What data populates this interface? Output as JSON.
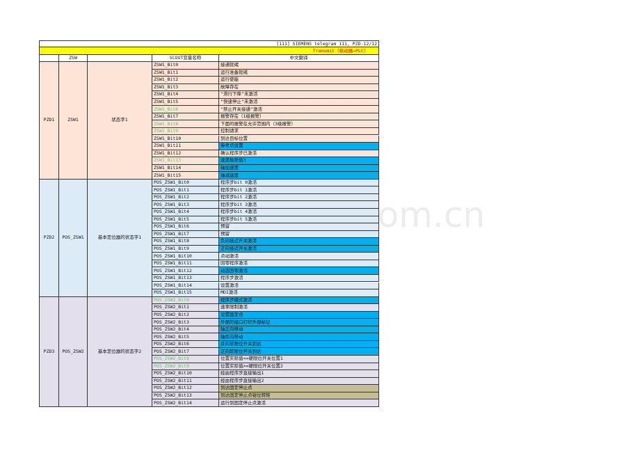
{
  "header": {
    "telegram": "[111] SIEMENS telegram 111, PZD-12/12",
    "direction": "Transmit（驱动器→PLC）"
  },
  "watermark": "www.zixin.com.cn",
  "table": {
    "columns": [
      "ZSW",
      "SCOUT变量名称",
      "中文翻译"
    ],
    "groups": [
      {
        "pzd": "PZD1",
        "word": "ZSW1",
        "description": "状态字1",
        "fill": "#fce4d6",
        "rows": [
          {
            "name": "ZSW1_Bit0",
            "translation": "接通就绪"
          },
          {
            "name": "ZSW1_Bit1",
            "translation": "运行准备就绪"
          },
          {
            "name": "ZSW1_Bit2",
            "translation": "运行使能"
          },
          {
            "name": "ZSW1_Bit3",
            "translation": "故障存在"
          },
          {
            "name": "ZSW1_Bit4",
            "translation": "\"滑行下降\"未激活"
          },
          {
            "name": "ZSW1_Bit5",
            "translation": "\"快速停止\"未激活"
          },
          {
            "name": "ZSW1_Bit6",
            "translation": "\"禁止开关接通\"激活",
            "name_color": "#5cc45c"
          },
          {
            "name": "ZSW1_Bit7",
            "translation": "报警存在（1级报警）"
          },
          {
            "name": "ZSW1_Bit8",
            "translation": "下面的报警在允许范围内（3级报警）",
            "name_color": "#5cc45c"
          },
          {
            "name": "ZSW1_Bit9",
            "translation": "控制请求",
            "name_color": "#5cc45c"
          },
          {
            "name": "ZSW1_Bit10",
            "translation": "到达目标位置"
          },
          {
            "name": "ZSW1_Bit11",
            "translation": "参考点设置",
            "fill": "#00b0f0"
          },
          {
            "name": "ZSW1_Bit12",
            "translation": "确认程序步已激活"
          },
          {
            "name": "ZSW1_Bit13",
            "translation": "速度极限值3",
            "fill": "#00b0f0",
            "name_color": "#5cc45c"
          },
          {
            "name": "ZSW1_Bit14",
            "translation": "轴加速度",
            "fill": "#00b0f0"
          },
          {
            "name": "ZSW1_Bit15",
            "translation": "轴减速度",
            "fill": "#00b0f0"
          }
        ]
      },
      {
        "pzd": "PZD2",
        "word": "POS_ZSW1",
        "description": "基本定位器的状态字1",
        "fill": "#ddebf7",
        "rows": [
          {
            "name": "POS_ZSW1_Bit0",
            "translation": "程序步bit 0激活"
          },
          {
            "name": "POS_ZSW1_Bit1",
            "translation": "程序步bit 1激活"
          },
          {
            "name": "POS_ZSW1_Bit2",
            "translation": "程序步bit 2激活"
          },
          {
            "name": "POS_ZSW1_Bit3",
            "translation": "程序步bit 3激活"
          },
          {
            "name": "POS_ZSW1_Bit4",
            "translation": "程序步bit 4激活"
          },
          {
            "name": "POS_ZSW1_Bit5",
            "translation": "程序步bit 5激活"
          },
          {
            "name": "POS_ZSW1_Bit6",
            "translation": "预留"
          },
          {
            "name": "POS_ZSW1_Bit7",
            "translation": "预留"
          },
          {
            "name": "POS_ZSW1_Bit8",
            "translation": "负向接近开关激活",
            "fill": "#00b0f0"
          },
          {
            "name": "POS_ZSW1_Bit9",
            "translation": "正向接近开关激活",
            "fill": "#00b0f0"
          },
          {
            "name": "POS_ZSW1_Bit10",
            "translation": "点动激活"
          },
          {
            "name": "POS_ZSW1_Bit11",
            "translation": "回零程序激活"
          },
          {
            "name": "POS_ZSW1_Bit12",
            "translation": "动态回零激活",
            "fill": "#00b0f0"
          },
          {
            "name": "POS_ZSW1_Bit13",
            "translation": "程序步激活"
          },
          {
            "name": "POS_ZSW1_Bit14",
            "translation": "设置激活"
          },
          {
            "name": "POS_ZSW1_Bit15",
            "translation": "MDI激活"
          }
        ]
      },
      {
        "pzd": "PZD3",
        "word": "POS_ZSW2",
        "description": "基本定位器的状态字2",
        "fill": "#e4dfec",
        "rows": [
          {
            "name": "POS_ZSW2_Bit0",
            "translation": "程序步模式激活",
            "fill": "#00b0f0",
            "name_color": "#5cc45c"
          },
          {
            "name": "POS_ZSW2_Bit1",
            "translation": "速率限制激活"
          },
          {
            "name": "POS_ZSW2_Bit2",
            "translation": "设置固定点",
            "fill": "#00b0f0"
          },
          {
            "name": "POS_ZSW2_Bit3",
            "translation": "外部的接口打印外部标记",
            "fill": "#00b0f0"
          },
          {
            "name": "POS_ZSW2_Bit4",
            "translation": "轴正向移动",
            "fill": "#00b0f0"
          },
          {
            "name": "POS_ZSW2_Bit5",
            "translation": "轴反向移动",
            "fill": "#00b0f0"
          },
          {
            "name": "POS_ZSW2_Bit6",
            "translation": "反向软限位开关到达",
            "fill": "#00b0f0"
          },
          {
            "name": "POS_ZSW2_Bit7",
            "translation": "正向软限位开关到达",
            "fill": "#00b0f0"
          },
          {
            "name": "POS_ZSW2_Bit8",
            "translation": "位置实际值<=硬限位开关位置1",
            "name_color": "#5cc45c"
          },
          {
            "name": "POS_ZSW2_Bit9",
            "translation": "位置实际值>=硬限位开关位置2",
            "name_color": "#5cc45c"
          },
          {
            "name": "POS_ZSW2_Bit10",
            "translation": "经由程序步直接输出1"
          },
          {
            "name": "POS_ZSW2_Bit11",
            "translation": "经由程序步直接输出2"
          },
          {
            "name": "POS_ZSW2_Bit12",
            "translation": "到达固定停止点",
            "fill": "#c4bd97"
          },
          {
            "name": "POS_ZSW2_Bit13",
            "translation": "到达固定停止点钳位转矩",
            "fill": "#c4bd97"
          },
          {
            "name": "POS_ZSW2_Bit14",
            "translation": "运行到固定停止点激活"
          }
        ]
      }
    ]
  }
}
